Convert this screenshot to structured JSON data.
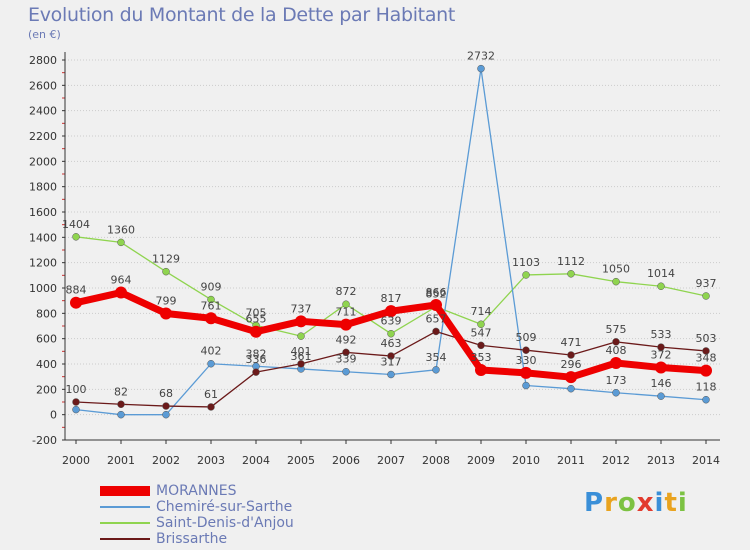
{
  "header": {
    "title": "Evolution du Montant de la Dette par Habitant",
    "subtitle": "(en €)"
  },
  "logo": {
    "text": "Proxiti"
  },
  "colors": {
    "morannes": "#ee0000",
    "chemire": "#5b9bd5",
    "saint_denis": "#8fd44f",
    "brissarthe": "#6b1a1a",
    "text": "#6b7ab5",
    "axis": "#333333",
    "grid": "#cccccc",
    "background": "#f0f0f0"
  },
  "chart_data": {
    "type": "line",
    "title": "Evolution du Montant de la Dette par Habitant",
    "subtitle": "(en €)",
    "x": [
      "2000",
      "2001",
      "2002",
      "2003",
      "2004",
      "2005",
      "2006",
      "2007",
      "2008",
      "2009",
      "2010",
      "2011",
      "2012",
      "2013",
      "2014"
    ],
    "ylim": [
      -200,
      2800
    ],
    "yticks": [
      -200,
      0,
      200,
      400,
      600,
      800,
      1000,
      1200,
      1400,
      1600,
      1800,
      2000,
      2200,
      2400,
      2600,
      2800
    ],
    "grid": "horizontal",
    "legend_position": "bottom-left",
    "series": [
      {
        "name": "MORANNES",
        "values": [
          884,
          964,
          799,
          761,
          655,
          737,
          711,
          817,
          866,
          353,
          330,
          296,
          408,
          372,
          348
        ],
        "labels": [
          "884",
          "964",
          "799",
          "761",
          "655",
          "737",
          "711",
          "817",
          "866",
          "353",
          "330",
          "296",
          "408",
          "372",
          "348"
        ]
      },
      {
        "name": "Chemiré-sur-Sarthe",
        "values": [
          40,
          0,
          0,
          402,
          382,
          361,
          339,
          317,
          354,
          2732,
          230,
          205,
          173,
          146,
          118
        ],
        "labels": [
          "",
          "",
          "",
          "402",
          "382",
          "361",
          "339",
          "317",
          "354",
          "2732",
          "",
          "",
          "173",
          "146",
          "118"
        ]
      },
      {
        "name": "Saint-Denis-d'Anjou",
        "values": [
          1404,
          1360,
          1129,
          909,
          705,
          620,
          872,
          639,
          852,
          714,
          1103,
          1112,
          1050,
          1014,
          937
        ],
        "labels": [
          "1404",
          "1360",
          "1129",
          "909",
          "705",
          "",
          "872",
          "639",
          "852",
          "714",
          "1103",
          "1112",
          "1050",
          "1014",
          "937"
        ]
      },
      {
        "name": "Brissarthe",
        "values": [
          100,
          82,
          68,
          61,
          336,
          401,
          492,
          463,
          657,
          547,
          509,
          471,
          575,
          533,
          503
        ],
        "labels": [
          "100",
          "82",
          "68",
          "61",
          "336",
          "401",
          "492",
          "463",
          "657",
          "547",
          "509",
          "471",
          "575",
          "533",
          "503"
        ]
      }
    ]
  }
}
